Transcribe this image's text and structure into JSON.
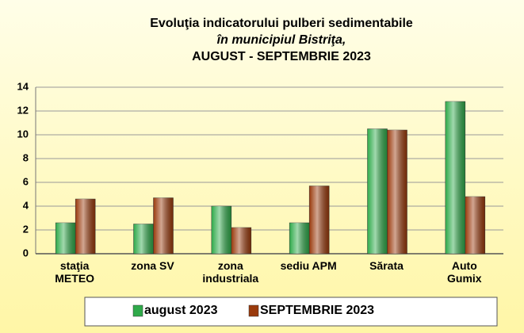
{
  "chart_data": {
    "type": "bar",
    "title": "Evoluţia indicatorului pulberi sedimentabile",
    "subtitle": "în municipiul Bistriţa,",
    "period": "AUGUST - SEPTEMBRIE 2023",
    "categories": [
      "staţia\nMETEO",
      "zona SV",
      "zona\nindustriala",
      "sediu APM",
      "Sărata",
      "Auto\nGumix"
    ],
    "series": [
      {
        "name": "august 2023",
        "color": "#2faa4a",
        "values": [
          2.6,
          2.5,
          4.0,
          2.6,
          10.5,
          12.8
        ]
      },
      {
        "name": "SEPTEMBRIE 2023",
        "color": "#9a3a0c",
        "values": [
          4.6,
          4.7,
          2.2,
          5.7,
          10.4,
          4.8
        ]
      }
    ],
    "ylim": [
      0,
      14
    ],
    "yticks": [
      0,
      2,
      4,
      6,
      8,
      10,
      12,
      14
    ],
    "grid": true,
    "legend": "bottom"
  }
}
